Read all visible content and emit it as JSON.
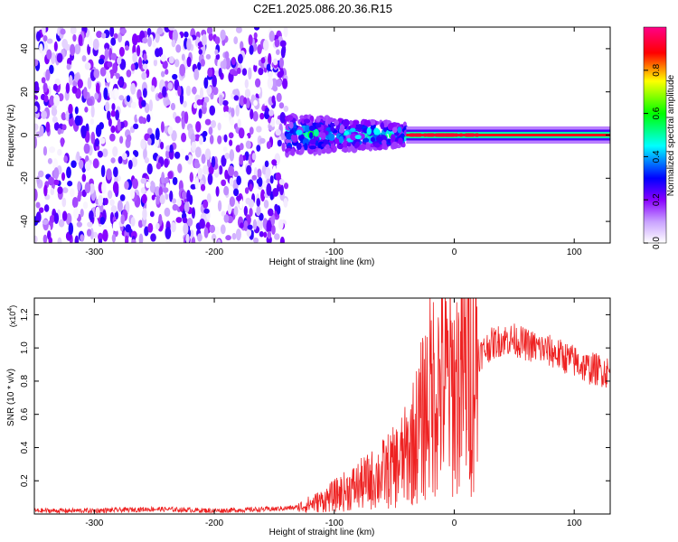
{
  "title": "C2E1.2025.086.20.36.R15",
  "chart_data": [
    {
      "type": "heatmap",
      "xlabel": "Height of straight line (km)",
      "ylabel": "Frequency (Hz)",
      "xlim": [
        -350,
        130
      ],
      "ylim": [
        -50,
        50
      ],
      "x_ticks": [
        -300,
        -200,
        -100,
        0,
        100
      ],
      "y_ticks": [
        -40,
        -20,
        0,
        20,
        40
      ],
      "colorbar": {
        "label": "Normalized spectral amplitude",
        "range": [
          0,
          1
        ],
        "ticks": [
          0.0,
          0.2,
          0.4,
          0.6,
          0.8
        ],
        "colors": [
          "#ffffff",
          "#8800ff",
          "#0000ff",
          "#00ffff",
          "#00ff00",
          "#ffff00",
          "#ff0000",
          "#ff00aa"
        ]
      },
      "regions": [
        {
          "x": [
            -350,
            -140
          ],
          "freq_range": [
            -50,
            50
          ],
          "amplitude": 0.2
        },
        {
          "x": [
            -140,
            -40
          ],
          "freq_range": [
            -10,
            10
          ],
          "amplitude": 0.45
        },
        {
          "x": [
            -40,
            130
          ],
          "freq_center": 0,
          "amplitude": 0.9
        }
      ]
    },
    {
      "type": "line",
      "xlabel": "Height of straight line (km)",
      "ylabel": "SNR (10 * v/v)",
      "y_scale_label": "(x10^4)",
      "xlim": [
        -350,
        130
      ],
      "ylim": [
        0,
        1.3
      ],
      "x_ticks": [
        -300,
        -200,
        -100,
        0,
        100
      ],
      "y_ticks": [
        0.2,
        0.4,
        0.6,
        0.8,
        1.0,
        1.2
      ],
      "series": [
        {
          "color": "#ee2222",
          "x": [
            -350,
            -300,
            -250,
            -200,
            -150,
            -130,
            -110,
            -90,
            -70,
            -50,
            -40,
            -30,
            -20,
            -10,
            0,
            10,
            20,
            30,
            40,
            50,
            60,
            70,
            80,
            90,
            100,
            110,
            120,
            130
          ],
          "y": [
            0.02,
            0.02,
            0.03,
            0.02,
            0.03,
            0.04,
            0.08,
            0.14,
            0.2,
            0.28,
            0.35,
            0.5,
            0.72,
            0.8,
            0.75,
            0.85,
            0.95,
            1.02,
            1.05,
            1.05,
            1.02,
            1.0,
            0.98,
            0.95,
            0.92,
            0.88,
            0.87,
            0.85
          ]
        }
      ]
    }
  ]
}
